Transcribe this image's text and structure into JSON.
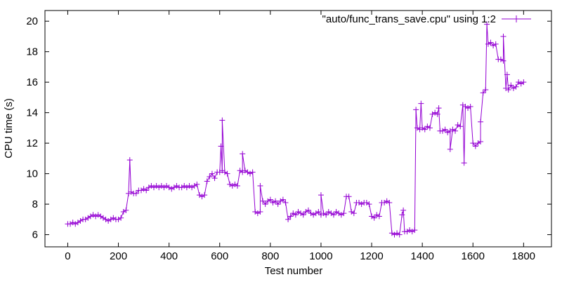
{
  "chart_data": {
    "type": "line",
    "title": "",
    "xlabel": "Test number",
    "ylabel": "CPU time (s)",
    "xlim": [
      -90,
      1910
    ],
    "ylim": [
      5.2,
      20.7
    ],
    "xticks": [
      0,
      200,
      400,
      600,
      800,
      1000,
      1200,
      1400,
      1600,
      1800
    ],
    "yticks": [
      6,
      8,
      10,
      12,
      14,
      16,
      18,
      20
    ],
    "grid": false,
    "legend": {
      "position": "top-right",
      "entries": [
        "\"auto/func_trans_save.cpu\" using 1:2"
      ]
    },
    "series": [
      {
        "name": "\"auto/func_trans_save.cpu\" using 1:2",
        "color": "#9400d3",
        "marker": "plus",
        "x_start": 0,
        "x_step": 10,
        "values": [
          6.7,
          6.7,
          6.8,
          6.7,
          6.8,
          6.9,
          7.0,
          7.0,
          7.1,
          7.2,
          7.3,
          7.2,
          7.3,
          7.2,
          7.1,
          7.0,
          6.9,
          7.0,
          7.1,
          7.0,
          7.0,
          7.1,
          7.5,
          7.6,
          8.7,
          8.8,
          8.7,
          8.7,
          8.9,
          8.9,
          9.0,
          8.9,
          9.1,
          9.2,
          9.1,
          9.2,
          9.1,
          9.2,
          9.1,
          9.2,
          9.1,
          9.0,
          9.1,
          9.2,
          9.1,
          9.1,
          9.2,
          9.1,
          9.2,
          9.1,
          9.2,
          9.3,
          8.6,
          8.5,
          8.6,
          9.5,
          9.8,
          10.0,
          9.7,
          10.1,
          10.1,
          10.2,
          10.1,
          10.0,
          9.3,
          9.2,
          9.3,
          9.2,
          10.2,
          10.1,
          10.2,
          10.1,
          10.0,
          10.1,
          7.5,
          7.4,
          7.5,
          8.2,
          8.0,
          8.2,
          8.3,
          8.1,
          8.2,
          8.0,
          8.2,
          8.3,
          8.1,
          7.0,
          7.2,
          7.4,
          7.3,
          7.5,
          7.4,
          7.3,
          7.5,
          7.6,
          7.4,
          7.3,
          7.4,
          7.5,
          7.3,
          7.4,
          7.3,
          7.5,
          7.4,
          7.3,
          7.5,
          7.4,
          7.3,
          7.4,
          8.5,
          8.5,
          7.5,
          7.4,
          8.1,
          8.1,
          8.0,
          8.1,
          8.1,
          8.0,
          7.2,
          7.1,
          7.3,
          7.2,
          8.1,
          8.1,
          8.2,
          8.1,
          6.1,
          6.0,
          6.1,
          6.0,
          7.3,
          6.2,
          6.2,
          6.3,
          6.2,
          6.3,
          13.0,
          12.9,
          13.0,
          12.9,
          13.1,
          13.0,
          13.9,
          14.0,
          13.9,
          12.8,
          12.8,
          12.9,
          12.7,
          12.8,
          12.9,
          12.8,
          13.2,
          13.1,
          14.5,
          14.4,
          14.3,
          14.4,
          12.0,
          11.8,
          12.0,
          12.1,
          15.3,
          15.5,
          18.5,
          18.6,
          18.4,
          18.5,
          17.5,
          17.5,
          17.4,
          15.6,
          15.5,
          15.8,
          15.6,
          15.7,
          16.0,
          15.9,
          16.0
        ],
        "outliers": [
          [
            245,
            10.9
          ],
          [
            610,
            13.5
          ],
          [
            605,
            11.8
          ],
          [
            690,
            11.3
          ],
          [
            760,
            9.2
          ],
          [
            1000,
            8.6
          ],
          [
            1375,
            14.2
          ],
          [
            1395,
            14.6
          ],
          [
            1465,
            14.3
          ],
          [
            1510,
            11.6
          ],
          [
            1565,
            10.7
          ],
          [
            1630,
            13.4
          ],
          [
            1655,
            19.8
          ],
          [
            1720,
            19.0
          ],
          [
            1735,
            16.5
          ],
          [
            1325,
            7.6
          ]
        ]
      }
    ]
  }
}
